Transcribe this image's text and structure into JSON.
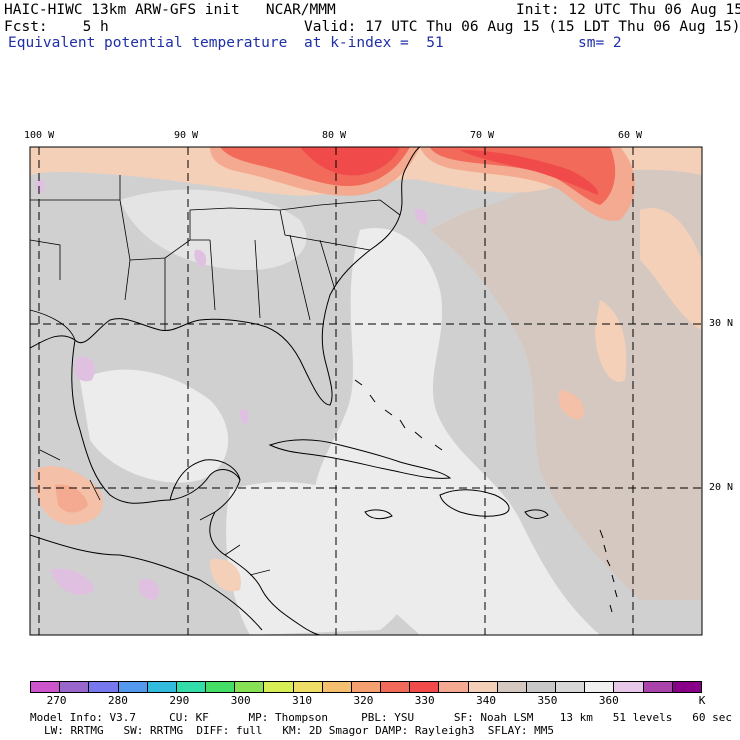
{
  "header": {
    "line1_left": "HAIC-HIWC 13km ARW-GFS init   NCAR/MMM",
    "line1_right": "Init: 12 UTC Thu 06 Aug 15",
    "line2_left": "Fcst:    5 h",
    "line2_right": "Valid: 17 UTC Thu 06 Aug 15 (15 LDT Thu 06 Aug 15)",
    "line3_left": "Equivalent potential temperature",
    "line3_mid": "at k-index =  51",
    "line3_right": "sm= 2"
  },
  "map": {
    "lon_labels": [
      "100 W",
      "90 W",
      "80 W",
      "70 W",
      "60 W"
    ],
    "lat_labels": [
      "30 N",
      "20 N"
    ],
    "colors": {
      "land_border": "#000000",
      "grid_line": "#000000",
      "background": "#d0d0d0"
    }
  },
  "colorbar": {
    "colors": [
      "#cc55cc",
      "#9966cc",
      "#7777ee",
      "#5599ee",
      "#33bbdd",
      "#33ddaa",
      "#44dd66",
      "#88e055",
      "#d8ee55",
      "#eedd66",
      "#f4c070",
      "#f4a070",
      "#f26a5a",
      "#f04a4a",
      "#f4aa90",
      "#f4d0b8",
      "#d4c8c0",
      "#c8c8c8",
      "#d8d8d8",
      "#f0f0f0",
      "#e8c8e8",
      "#aa44aa",
      "#880088"
    ],
    "tick_labels": [
      "270",
      "280",
      "290",
      "300",
      "310",
      "320",
      "330",
      "340",
      "350",
      "360"
    ],
    "unit": "K"
  },
  "footer": {
    "line1": "Model Info: V3.7     CU: KF      MP: Thompson     PBL: YSU      SF: Noah LSM    13 km   51 levels   60 sec",
    "line2": "LW: RRTMG   SW: RRTMG  DIFF: full   KM: 2D Smagor DAMP: Rayleigh3  SFLAY: MM5"
  }
}
